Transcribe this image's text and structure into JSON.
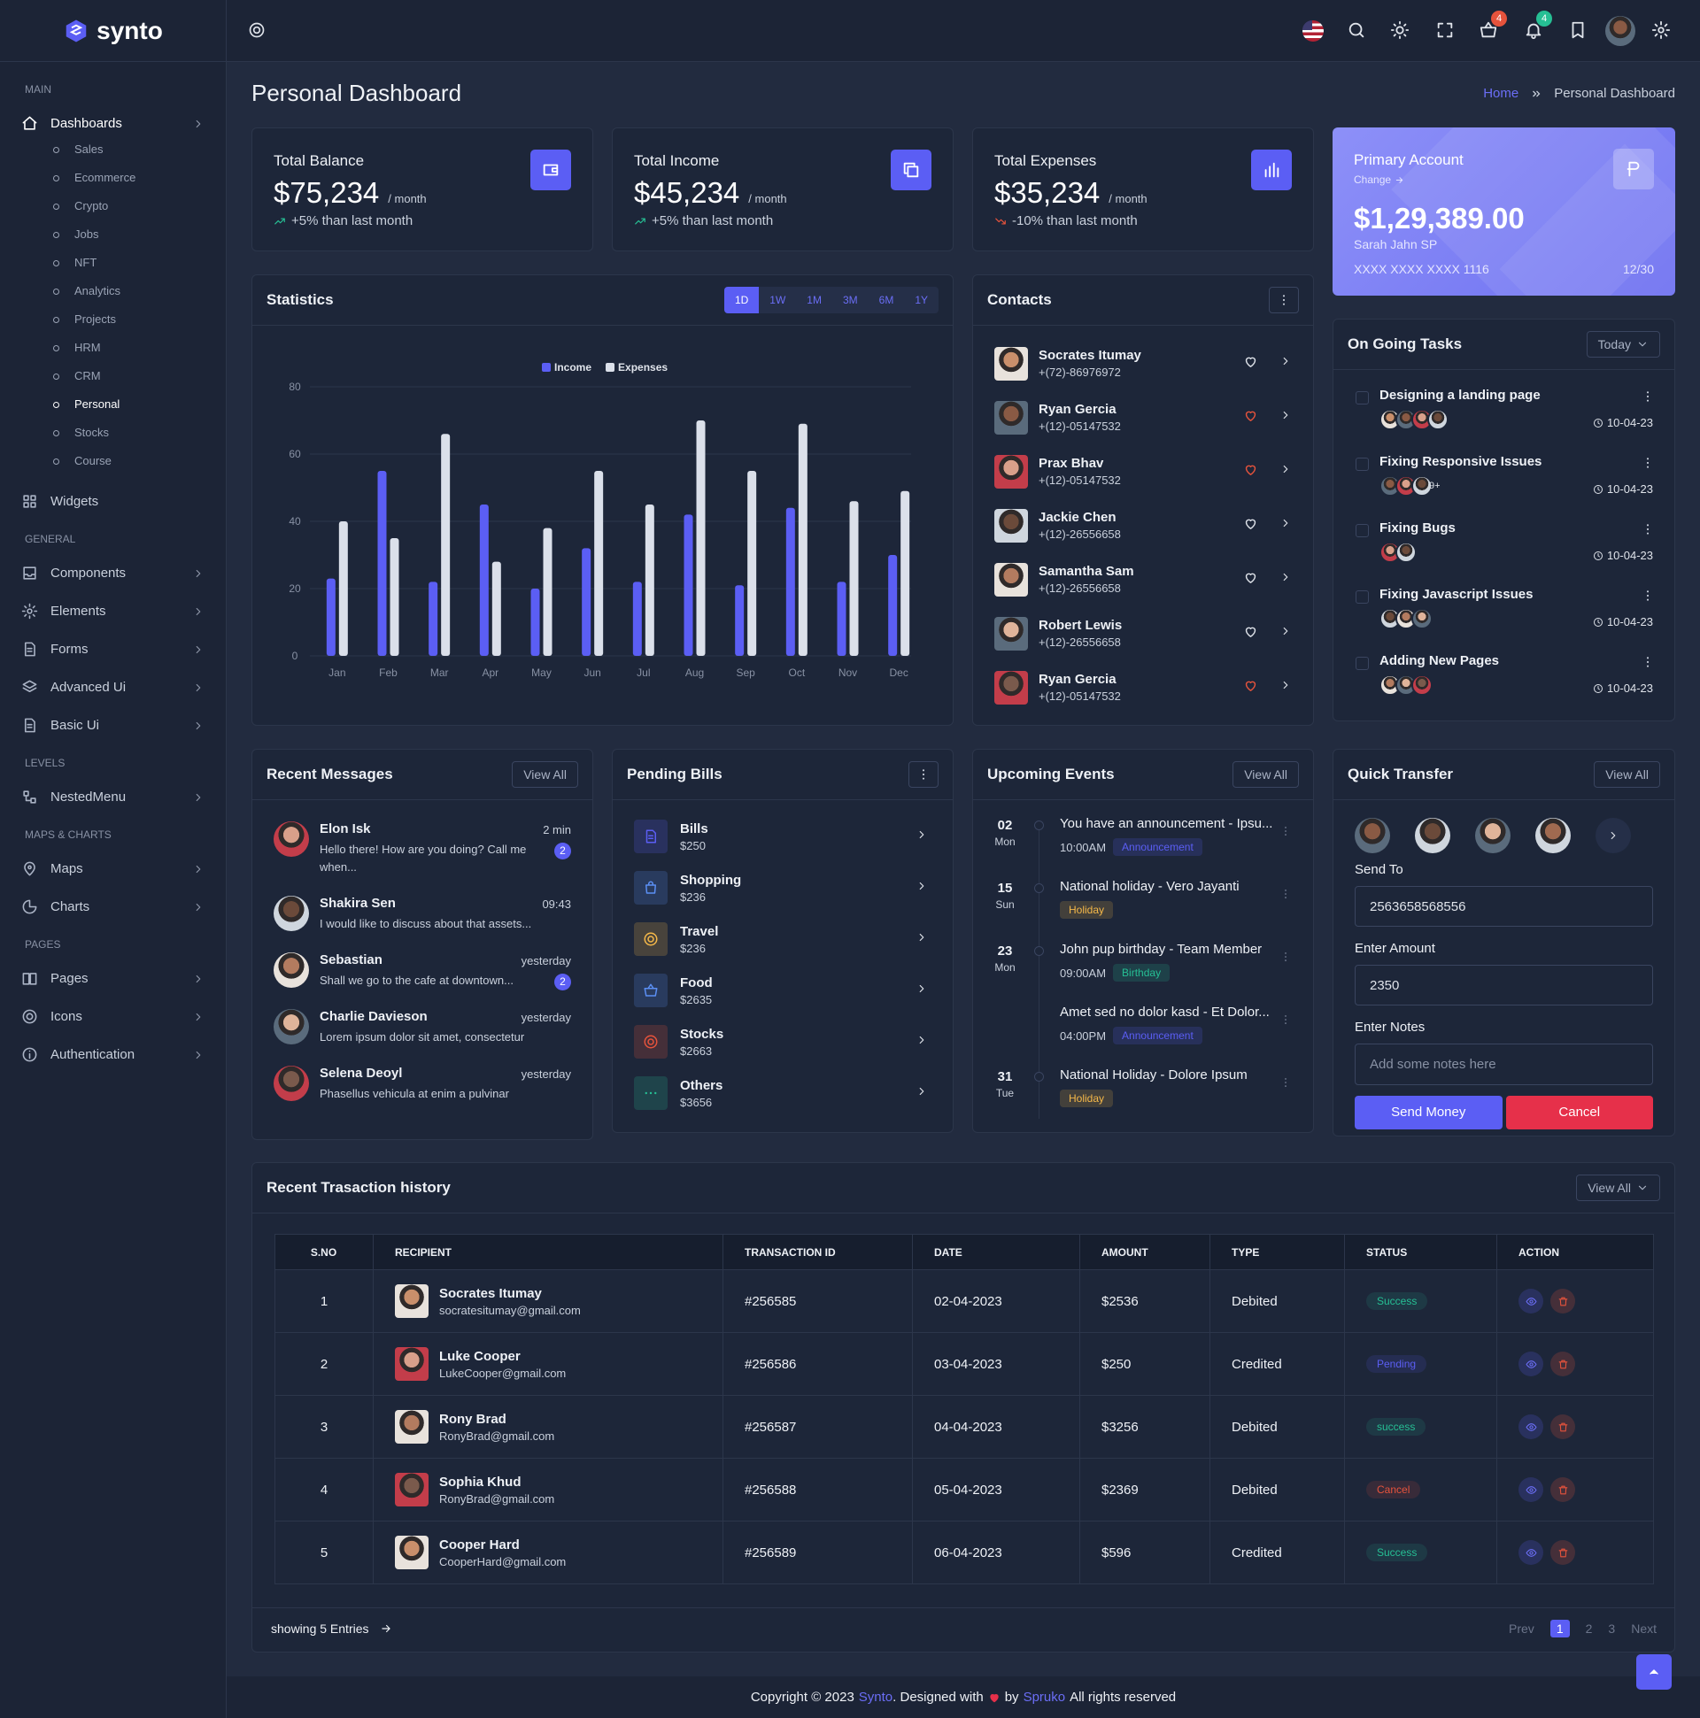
{
  "brand": "synto",
  "header": {
    "badges": [
      "4",
      "4"
    ]
  },
  "sidebar": {
    "sections": [
      {
        "title": "MAIN",
        "items": [
          {
            "label": "Dashboards",
            "arrow": true,
            "active": 9,
            "children": [
              "Sales",
              "Ecommerce",
              "Crypto",
              "Jobs",
              "NFT",
              "Analytics",
              "Projects",
              "HRM",
              "CRM",
              "Personal",
              "Stocks",
              "Course"
            ]
          },
          {
            "label": "Widgets",
            "arrow": false
          }
        ]
      },
      {
        "title": "GENERAL",
        "items": [
          {
            "label": "Components",
            "arrow": true
          },
          {
            "label": "Elements",
            "arrow": true
          },
          {
            "label": "Forms",
            "arrow": true
          },
          {
            "label": "Advanced Ui",
            "arrow": true
          },
          {
            "label": "Basic Ui",
            "arrow": true
          }
        ]
      },
      {
        "title": "LEVELS",
        "items": [
          {
            "label": "NestedMenu",
            "arrow": true
          }
        ]
      },
      {
        "title": "MAPS & CHARTS",
        "items": [
          {
            "label": "Maps",
            "arrow": true
          },
          {
            "label": "Charts",
            "arrow": true
          }
        ]
      },
      {
        "title": "PAGES",
        "items": [
          {
            "label": "Pages",
            "arrow": true
          },
          {
            "label": "Icons",
            "arrow": true
          },
          {
            "label": "Authentication",
            "arrow": true
          }
        ]
      }
    ]
  },
  "page_title": "Personal Dashboard",
  "breadcrumb": [
    "Home",
    "Personal Dashboard"
  ],
  "summary_cards": [
    {
      "title": "Total Balance",
      "amount": "$75,234",
      "period": "/ month",
      "change": "+5% than last month",
      "trend": "up"
    },
    {
      "title": "Total Income",
      "amount": "$45,234",
      "period": "/ month",
      "change": "+5% than last month",
      "trend": "up"
    },
    {
      "title": "Total Expenses",
      "amount": "$35,234",
      "period": "/ month",
      "change": "-10% than last month",
      "trend": "down"
    }
  ],
  "primary_account": {
    "title": "Primary Account",
    "change": "Change",
    "balance": "$1,29,389.00",
    "holder": "Sarah Jahn SP",
    "number": "XXXX XXXX XXXX 1116",
    "expiry": "12/30"
  },
  "statistics_ranges": [
    "1D",
    "1W",
    "1M",
    "3M",
    "6M",
    "1Y"
  ],
  "chart_data": {
    "type": "bar",
    "title": "Statistics",
    "categories": [
      "Jan",
      "Feb",
      "Mar",
      "Apr",
      "May",
      "Jun",
      "Jul",
      "Aug",
      "Sep",
      "Oct",
      "Nov",
      "Dec"
    ],
    "series": [
      {
        "name": "Income",
        "color": "#5b5ef4",
        "values": [
          23,
          55,
          22,
          45,
          20,
          32,
          22,
          42,
          21,
          44,
          22,
          30
        ]
      },
      {
        "name": "Expenses",
        "color": "#dbe0ea",
        "values": [
          40,
          35,
          66,
          28,
          38,
          55,
          45,
          70,
          55,
          69,
          46,
          49
        ]
      }
    ],
    "ylim": [
      0,
      80
    ],
    "yticks": [
      0,
      20,
      40,
      60,
      80
    ],
    "grid": true,
    "legend": "top"
  },
  "contacts": {
    "title": "Contacts",
    "items": [
      {
        "name": "Socrates Itumay",
        "phone": "+(72)-86976972",
        "favorite": false
      },
      {
        "name": "Ryan Gercia",
        "phone": "+(12)-05147532",
        "favorite": true
      },
      {
        "name": "Prax Bhav",
        "phone": "+(12)-05147532",
        "favorite": true
      },
      {
        "name": "Jackie Chen",
        "phone": "+(12)-26556658",
        "favorite": false
      },
      {
        "name": "Samantha Sam",
        "phone": "+(12)-26556658",
        "favorite": false
      },
      {
        "name": "Robert Lewis",
        "phone": "+(12)-26556658",
        "favorite": false
      },
      {
        "name": "Ryan Gercia",
        "phone": "+(12)-05147532",
        "favorite": true
      }
    ]
  },
  "tasks": {
    "title": "On Going Tasks",
    "filter": "Today",
    "items": [
      {
        "title": "Designing a landing page",
        "date": "10-04-23",
        "avatars": 4
      },
      {
        "title": "Fixing Responsive Issues",
        "date": "10-04-23",
        "avatars": 3,
        "more": "9+"
      },
      {
        "title": "Fixing Bugs",
        "date": "10-04-23",
        "avatars": 2
      },
      {
        "title": "Fixing Javascript Issues",
        "date": "10-04-23",
        "avatars": 3
      },
      {
        "title": "Adding New Pages",
        "date": "10-04-23",
        "avatars": 3
      }
    ]
  },
  "messages": {
    "title": "Recent Messages",
    "action": "View All",
    "items": [
      {
        "name": "Elon Isk",
        "time": "2 min",
        "text": "Hello there! How are you doing? Call me when...",
        "count": "2"
      },
      {
        "name": "Shakira Sen",
        "time": "09:43",
        "text": "I would like to discuss about that assets..."
      },
      {
        "name": "Sebastian",
        "time": "yesterday",
        "text": "Shall we go to the cafe at downtown...",
        "count": "2"
      },
      {
        "name": "Charlie Davieson",
        "time": "yesterday",
        "text": "Lorem ipsum dolor sit amet, consectetur"
      },
      {
        "name": "Selena Deoyl",
        "time": "yesterday",
        "text": "Phasellus vehicula at enim a pulvinar"
      }
    ]
  },
  "bills": {
    "title": "Pending Bills",
    "items": [
      {
        "name": "Bills",
        "amount": "$250",
        "color": "#5b5ef4"
      },
      {
        "name": "Shopping",
        "amount": "$236",
        "color": "#5b8ff4"
      },
      {
        "name": "Travel",
        "amount": "$236",
        "color": "#f5b849"
      },
      {
        "name": "Food",
        "amount": "$2635",
        "color": "#5b8ff4"
      },
      {
        "name": "Stocks",
        "amount": "$2663",
        "color": "#e6533c"
      },
      {
        "name": "Others",
        "amount": "$3656",
        "color": "#26bf94"
      }
    ]
  },
  "events": {
    "title": "Upcoming Events",
    "action": "View All",
    "items": [
      {
        "day": "02",
        "weekday": "Mon",
        "entries": [
          {
            "title": "You have an announcement - Ipsu...",
            "time": "10:00AM",
            "tag": "Announcement",
            "tag_color": "#5b5ef4"
          }
        ]
      },
      {
        "day": "15",
        "weekday": "Sun",
        "entries": [
          {
            "title": "National holiday - Vero Jayanti",
            "tag": "Holiday",
            "tag_color": "#f5b849"
          }
        ]
      },
      {
        "day": "23",
        "weekday": "Mon",
        "entries": [
          {
            "title": "John pup birthday - Team Member",
            "time": "09:00AM",
            "tag": "Birthday",
            "tag_color": "#26bf94"
          },
          {
            "title": "Amet sed no dolor kasd - Et Dolor...",
            "time": "04:00PM",
            "tag": "Announcement",
            "tag_color": "#5b5ef4"
          }
        ]
      },
      {
        "day": "31",
        "weekday": "Tue",
        "entries": [
          {
            "title": "National Holiday - Dolore Ipsum",
            "tag": "Holiday",
            "tag_color": "#f5b849"
          }
        ]
      }
    ]
  },
  "transfer": {
    "title": "Quick Transfer",
    "action": "View All",
    "send_to": "Send To",
    "account": "2563658568556",
    "amount_label": "Enter Amount",
    "amount": "2350",
    "notes_label": "Enter Notes",
    "notes_placeholder": "Add some notes here",
    "send": "Send Money",
    "cancel": "Cancel"
  },
  "transactions": {
    "title": "Recent Trasaction history",
    "action": "View All",
    "columns": [
      "S.NO",
      "RECIPIENT",
      "TRANSACTION ID",
      "DATE",
      "AMOUNT",
      "TYPE",
      "STATUS",
      "ACTION"
    ],
    "rows": [
      {
        "sno": 1,
        "name": "Socrates Itumay",
        "email": "socratesitumay@gmail.com",
        "id": "#256585",
        "date": "02-04-2023",
        "amount": "$2536",
        "type": "Debited",
        "status": "Success",
        "status_color": "#26bf94"
      },
      {
        "sno": 2,
        "name": "Luke Cooper",
        "email": "LukeCooper@gmail.com",
        "id": "#256586",
        "date": "03-04-2023",
        "amount": "$250",
        "type": "Credited",
        "status": "Pending",
        "status_color": "#5b5ef4"
      },
      {
        "sno": 3,
        "name": "Rony Brad",
        "email": "RonyBrad@gmail.com",
        "id": "#256587",
        "date": "04-04-2023",
        "amount": "$3256",
        "type": "Debited",
        "status": "success",
        "status_color": "#26bf94"
      },
      {
        "sno": 4,
        "name": "Sophia Khud",
        "email": "RonyBrad@gmail.com",
        "id": "#256588",
        "date": "05-04-2023",
        "amount": "$2369",
        "type": "Debited",
        "status": "Cancel",
        "status_color": "#e6533c"
      },
      {
        "sno": 5,
        "name": "Cooper Hard",
        "email": "CooperHard@gmail.com",
        "id": "#256589",
        "date": "06-04-2023",
        "amount": "$596",
        "type": "Credited",
        "status": "Success",
        "status_color": "#26bf94"
      }
    ],
    "showing": "showing 5 Entries",
    "prev": "Prev",
    "next": "Next",
    "pages": [
      1,
      2,
      3
    ],
    "current": 1
  },
  "footer": {
    "prefix": "Copyright © 2023",
    "brand": "Synto",
    "designed": ". Designed with",
    "by": "by",
    "author": "Spruko",
    "suffix": "All rights reserved"
  }
}
